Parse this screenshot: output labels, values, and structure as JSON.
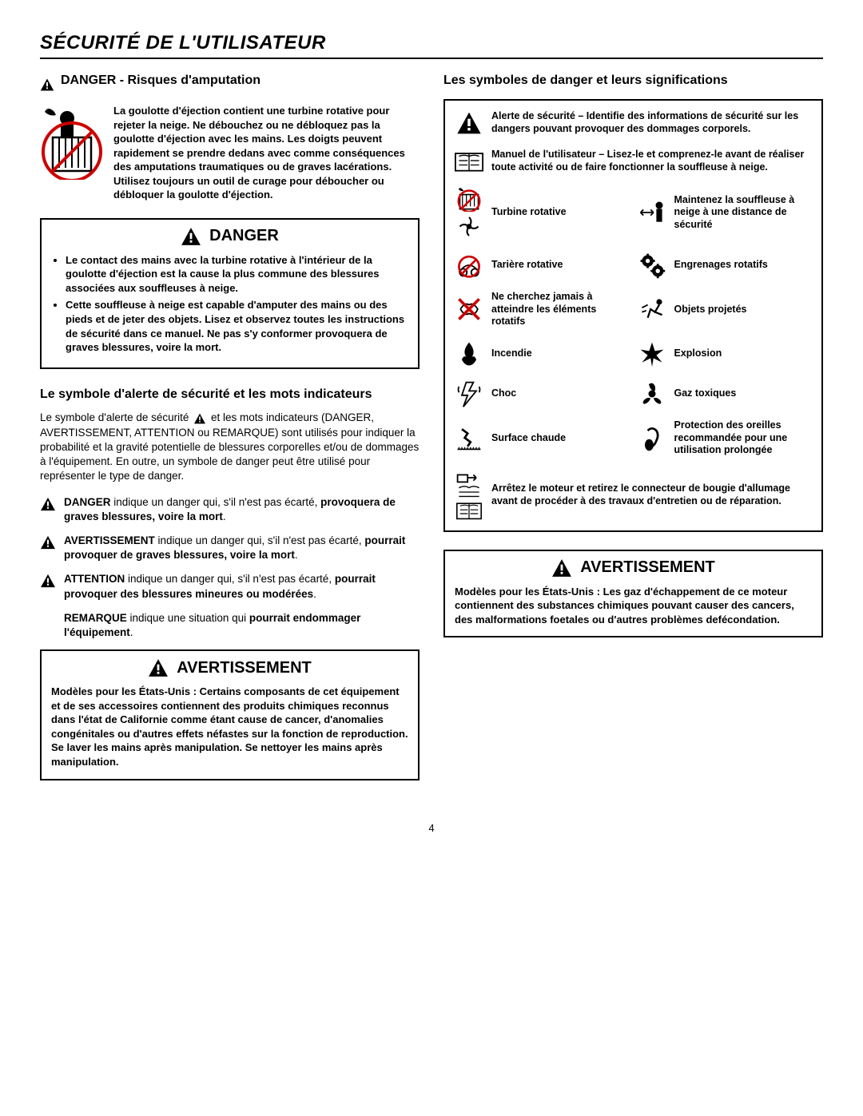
{
  "page_title": "SÉCURITÉ DE L'UTILISATEUR",
  "page_number": "4",
  "left": {
    "amputation_heading": "DANGER - Risques d'amputation",
    "amputation_text": "La goulotte d'éjection contient une turbine rotative pour rejeter la neige. Ne débouchez ou ne débloquez pas la goulotte d'éjection avec les mains. Les doigts peuvent rapidement se prendre dedans avec comme conséquences des amputations traumatiques ou de graves lacérations. Utilisez toujours un outil de curage pour déboucher ou débloquer la goulotte d'éjection.",
    "danger_title": "DANGER",
    "danger_bullets": [
      "Le contact des mains avec la turbine rotative à l'intérieur de la goulotte d'éjection est la cause la plus commune des blessures associées aux souffleuses à neige.",
      "Cette souffleuse à neige est capable d'amputer des mains ou des pieds et de jeter des objets. Lisez et observez toutes les instructions de sécurité dans ce manuel. Ne pas s'y conformer provoquera de graves blessures, voire la mort."
    ],
    "alert_subheading": "Le symbole d'alerte de sécurité et les mots indicateurs",
    "alert_body_pre": "Le symbole d'alerte de sécurité",
    "alert_body_post": "et les mots indicateurs (DANGER, AVERTISSEMENT, ATTENTION ou REMARQUE) sont utilisés pour indiquer la probabilité et la gravité potentielle de blessures corporelles et/ou de dommages à l'équipement. En outre, un symbole de danger peut être utilisé pour représenter le type de danger.",
    "signals": [
      {
        "lead": "DANGER",
        "rest": " indique un danger qui, s'il n'est pas écarté, ",
        "bold": "provoquera de graves blessures, voire la mort",
        "tail": "."
      },
      {
        "lead": "AVERTISSEMENT",
        "rest": " indique un danger qui, s'il n'est pas écarté, ",
        "bold": "pourrait provoquer de graves blessures, voire la mort",
        "tail": "."
      },
      {
        "lead": "ATTENTION",
        "rest": " indique un danger qui, s'il n'est pas écarté, ",
        "bold": "pourrait provoquer des blessures mineures ou modérées",
        "tail": "."
      }
    ],
    "remarque_lead": "REMARQUE",
    "remarque_rest": " indique une situation qui ",
    "remarque_bold": "pourrait endommager l'équipement",
    "remarque_tail": ".",
    "avert_title": "AVERTISSEMENT",
    "avert_text": "Modèles pour les États-Unis : Certains composants de cet équipement et de ses accessoires contiennent des produits chimiques reconnus dans l'état de Californie comme étant cause de cancer, d'anomalies congénitales ou d'autres effets néfastes sur la fonction de reproduction. Se laver les mains après manipulation. Se nettoyer les mains après manipulation."
  },
  "right": {
    "symbols_heading": "Les symboles de danger et leurs significations",
    "topRows": [
      {
        "label": "Alerte de sécurité – Identifie des informations de sécurité sur les dangers pouvant provoquer des dommages corporels."
      },
      {
        "label": "Manuel de l'utilisateur – Lisez-le et comprenez-le avant de réaliser toute activité ou de faire fonctionner la souffleuse à neige."
      }
    ],
    "grid": [
      {
        "l": "Turbine rotative",
        "r": "Maintenez la souffleuse à neige à une distance de sécurité"
      },
      {
        "l": "Tarière rotative",
        "r": "Engrenages rotatifs"
      },
      {
        "l": "Ne cherchez jamais à atteindre les éléments rotatifs",
        "r": "Objets projetés"
      },
      {
        "l": "Incendie",
        "r": "Explosion"
      },
      {
        "l": "Choc",
        "r": "Gaz toxiques"
      },
      {
        "l": "Surface chaude",
        "r": "Protection des oreilles recommandée pour une utilisation prolongée"
      }
    ],
    "bottomRow": "Arrêtez le moteur et retirez le connecteur de bougie d'allumage avant de procéder à des travaux d'entretien ou de réparation.",
    "avert_title": "AVERTISSEMENT",
    "avert_text": "Modèles pour les États-Unis : Les gaz d'échappement de ce moteur contiennent des substances chimiques pouvant causer des cancers, des malformations foetales ou d'autres problèmes defécondation."
  }
}
